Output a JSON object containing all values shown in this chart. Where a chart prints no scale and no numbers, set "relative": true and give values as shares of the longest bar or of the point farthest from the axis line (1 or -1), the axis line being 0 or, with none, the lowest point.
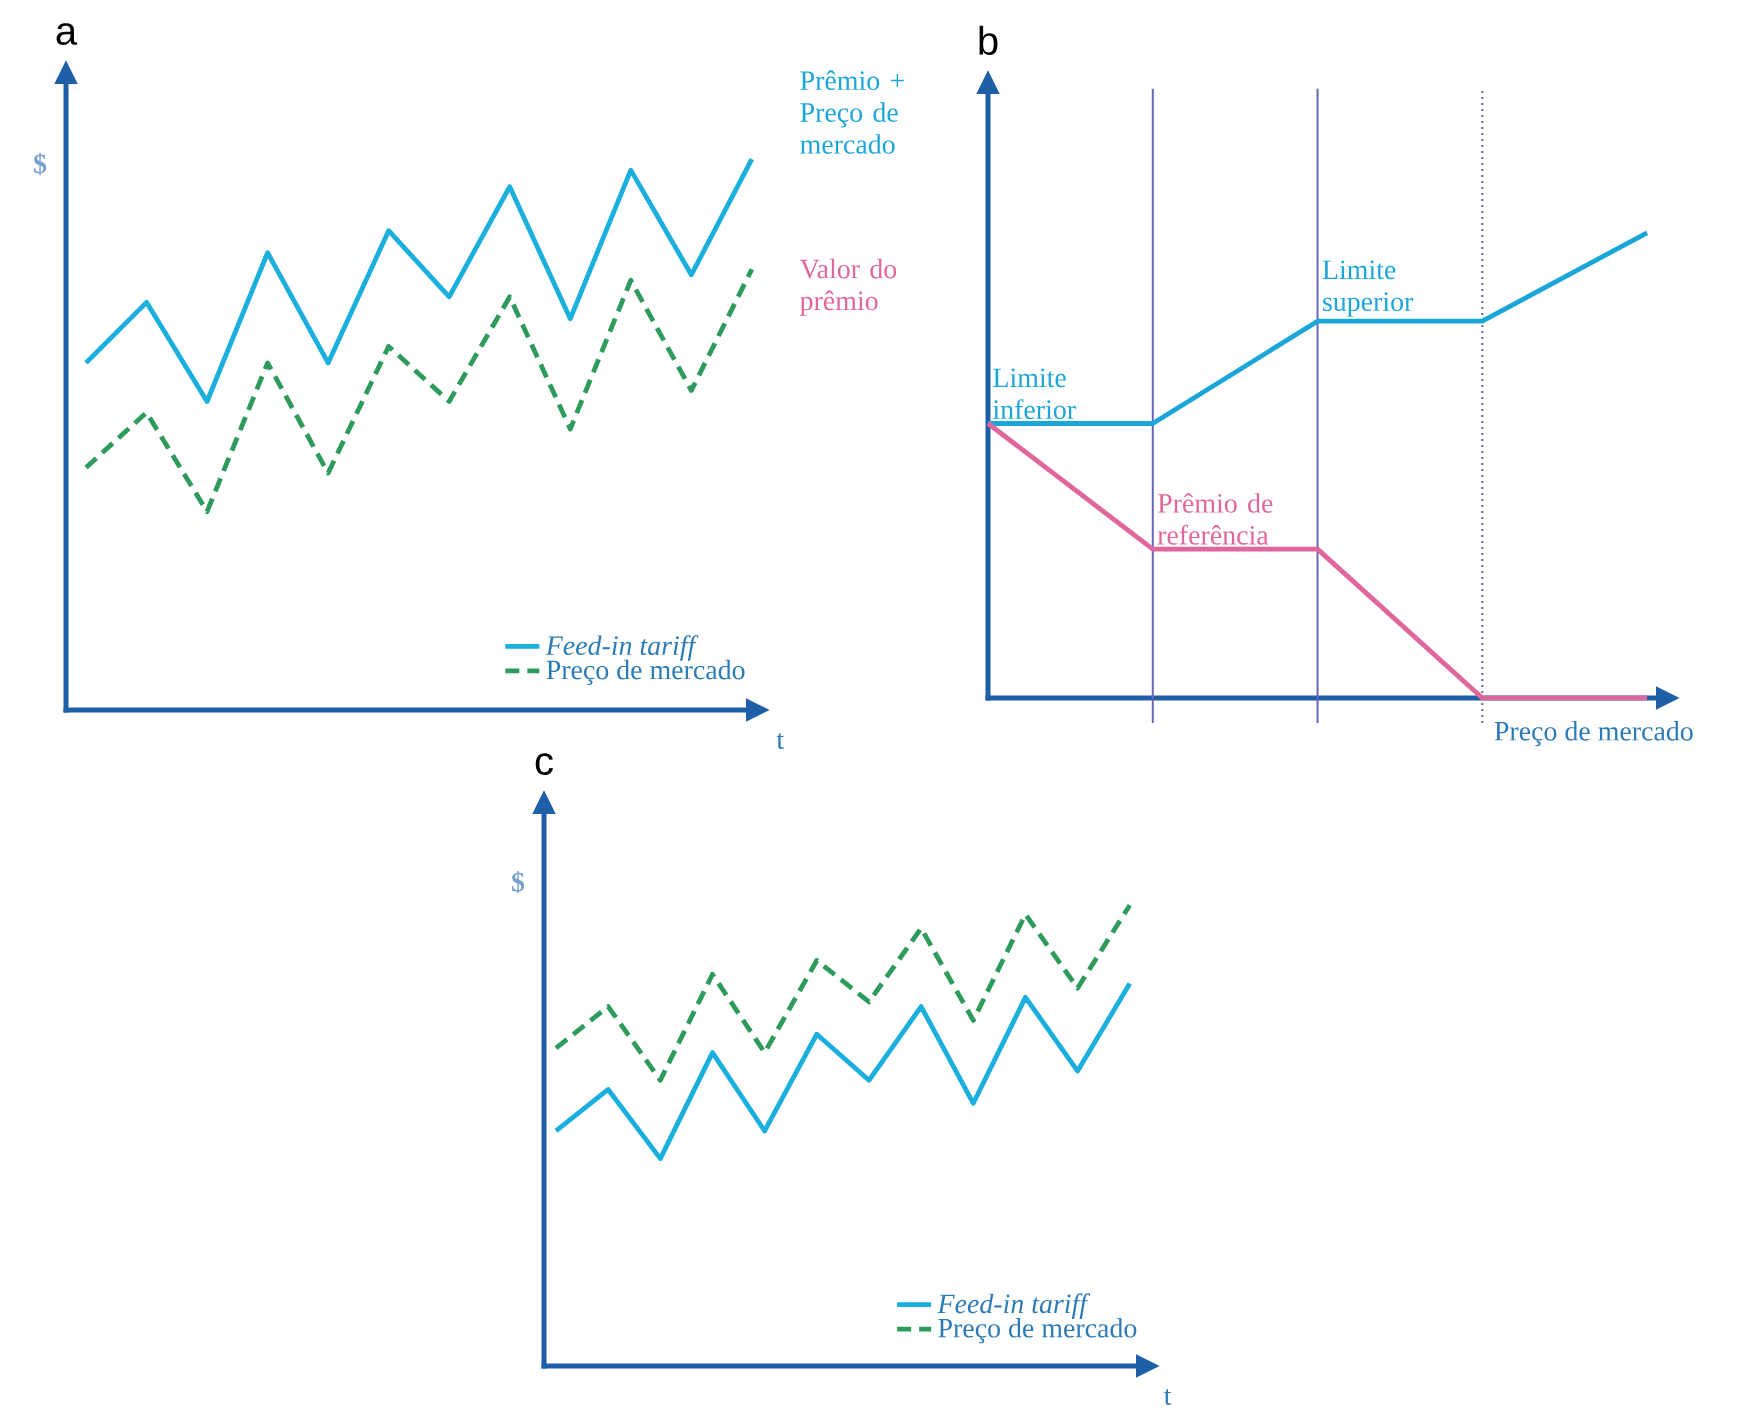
{
  "chart_data": [
    {
      "type": "line",
      "title": "a",
      "xlabel": "t",
      "ylabel": "$",
      "relative": true,
      "legend": "bottom right",
      "categories": [
        null,
        null,
        null,
        null,
        null,
        null,
        null,
        null,
        null,
        null,
        null,
        null
      ],
      "series": [
        {
          "name": "Feed-in tariff",
          "color": "#1aafdd",
          "values": [
            0.63,
            0.74,
            0.56,
            0.83,
            0.63,
            0.87,
            0.75,
            0.95,
            0.71,
            0.98,
            0.79,
            1
          ]
        },
        {
          "name": "Preço de mercado",
          "color": "#2e9b5c",
          "line_style": "dashed",
          "values": [
            0.44,
            0.54,
            0.36,
            0.63,
            0.43,
            0.66,
            0.56,
            0.75,
            0.51,
            0.78,
            0.58,
            0.8
          ]
        }
      ]
    },
    {
      "type": "line",
      "title": "b",
      "xlabel": "Preço de mercado",
      "relative": true,
      "legend": "left",
      "categories": [
        null,
        null,
        null,
        null,
        null
      ],
      "series": [
        {
          "name": "Prêmio + Preço de mercado",
          "color": "#1ba6d9",
          "values": [
            0.59,
            0.59,
            0.81,
            0.81,
            1
          ]
        },
        {
          "name": "Valor do prêmio",
          "color": "#e0679b",
          "values": [
            0.59,
            0.32,
            0.32,
            0,
            0
          ]
        }
      ],
      "annotations": [
        {
          "text": "Limite inferior",
          "y": 0.59
        },
        {
          "text": "Limite superior",
          "y": 0.81
        },
        {
          "text": "Prêmio de referência",
          "y": 0.32
        }
      ]
    },
    {
      "type": "line",
      "title": "c",
      "xlabel": "t",
      "ylabel": "$",
      "relative": true,
      "legend": "bottom right",
      "categories": [
        null,
        null,
        null,
        null,
        null,
        null,
        null,
        null,
        null,
        null,
        null,
        null
      ],
      "series": [
        {
          "name": "Feed-in tariff",
          "color": "#1aafdd",
          "values": [
            0.51,
            0.6,
            0.45,
            0.68,
            0.51,
            0.72,
            0.62,
            0.78,
            0.57,
            0.8,
            0.64,
            0.83
          ]
        },
        {
          "name": "Preço de mercado",
          "color": "#2e9b5c",
          "line_style": "dashed",
          "values": [
            0.69,
            0.78,
            0.62,
            0.85,
            0.68,
            0.88,
            0.79,
            0.95,
            0.75,
            0.98,
            0.82,
            1
          ]
        }
      ]
    }
  ]
}
